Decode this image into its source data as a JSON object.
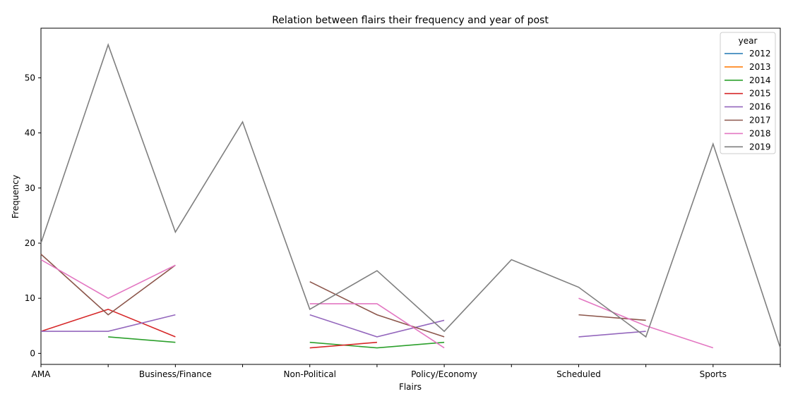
{
  "chart_data": {
    "type": "line",
    "title": "Relation between flairs their frequency and year of post",
    "xlabel": "Flairs",
    "ylabel": "Frequency",
    "ylim": [
      -2,
      59
    ],
    "x_points": [
      "AMA",
      "",
      "Business/Finance",
      "",
      "Non-Political",
      "",
      "Policy/Economy",
      "",
      "Scheduled",
      "",
      "Sports",
      ""
    ],
    "x_tick_labels": [
      "AMA",
      "Business/Finance",
      "Non-Political",
      "Policy/Economy",
      "Scheduled",
      "Sports"
    ],
    "y_ticks": [
      0,
      10,
      20,
      30,
      40,
      50
    ],
    "grid": false,
    "legend": {
      "title": "year",
      "placement": "top-right"
    },
    "series": [
      {
        "name": "2012",
        "color": "#1f77b4",
        "values": [
          null,
          null,
          null,
          null,
          null,
          null,
          null,
          null,
          null,
          null,
          null,
          null
        ]
      },
      {
        "name": "2013",
        "color": "#ff7f0e",
        "values": [
          null,
          null,
          null,
          null,
          null,
          null,
          null,
          null,
          null,
          null,
          null,
          null
        ]
      },
      {
        "name": "2014",
        "color": "#2ca02c",
        "values": [
          null,
          3,
          2,
          null,
          2,
          1,
          2,
          null,
          null,
          null,
          null,
          null
        ]
      },
      {
        "name": "2015",
        "color": "#d62728",
        "values": [
          4,
          8,
          3,
          null,
          1,
          2,
          null,
          null,
          null,
          null,
          null,
          null
        ]
      },
      {
        "name": "2016",
        "color": "#9467bd",
        "values": [
          4,
          4,
          7,
          null,
          7,
          3,
          6,
          null,
          3,
          4,
          null,
          null
        ]
      },
      {
        "name": "2017",
        "color": "#8c564b",
        "values": [
          18,
          7,
          16,
          null,
          13,
          7,
          3,
          null,
          7,
          6,
          null,
          null
        ]
      },
      {
        "name": "2018",
        "color": "#e377c2",
        "values": [
          17,
          10,
          16,
          null,
          9,
          9,
          1,
          null,
          10,
          5,
          1,
          null
        ]
      },
      {
        "name": "2019",
        "color": "#7f7f7f",
        "values": [
          20,
          56,
          22,
          42,
          8,
          15,
          4,
          17,
          12,
          3,
          38,
          1
        ]
      }
    ]
  }
}
